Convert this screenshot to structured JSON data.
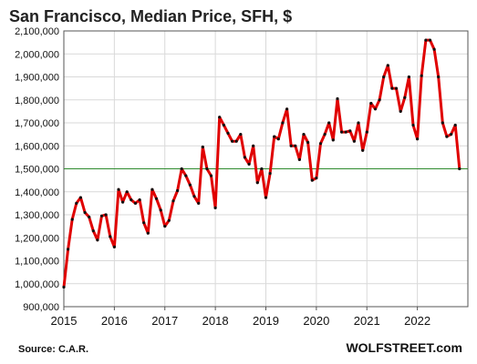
{
  "chart_data": {
    "type": "line",
    "title": "San Francisco, Median Price, SFH, $",
    "xlabel": "",
    "ylabel": "",
    "x_ticks": [
      "2015",
      "2016",
      "2017",
      "2018",
      "2019",
      "2020",
      "2021",
      "2022"
    ],
    "y_ticks": [
      "900,000",
      "1,000,000",
      "1,100,000",
      "1,200,000",
      "1,300,000",
      "1,400,000",
      "1,500,000",
      "1,600,000",
      "1,700,000",
      "1,800,000",
      "1,900,000",
      "2,000,000",
      "2,100,000"
    ],
    "xlim": [
      2015,
      2023
    ],
    "ylim": [
      900000,
      2100000
    ],
    "grid": true,
    "legend": false,
    "reference_line": {
      "value": 1500000,
      "color": "#2e8b2e"
    },
    "series": [
      {
        "color": "#e00000",
        "marker_color": "#111111",
        "points": [
          [
            2015.0,
            985000
          ],
          [
            2015.083,
            1150000
          ],
          [
            2015.167,
            1280000
          ],
          [
            2015.25,
            1350000
          ],
          [
            2015.333,
            1375000
          ],
          [
            2015.417,
            1310000
          ],
          [
            2015.5,
            1290000
          ],
          [
            2015.583,
            1230000
          ],
          [
            2015.667,
            1190000
          ],
          [
            2015.75,
            1295000
          ],
          [
            2015.833,
            1300000
          ],
          [
            2015.917,
            1205000
          ],
          [
            2016.0,
            1160000
          ],
          [
            2016.083,
            1410000
          ],
          [
            2016.167,
            1355000
          ],
          [
            2016.25,
            1400000
          ],
          [
            2016.333,
            1365000
          ],
          [
            2016.417,
            1350000
          ],
          [
            2016.5,
            1365000
          ],
          [
            2016.583,
            1265000
          ],
          [
            2016.667,
            1220000
          ],
          [
            2016.75,
            1410000
          ],
          [
            2016.833,
            1370000
          ],
          [
            2016.917,
            1320000
          ],
          [
            2017.0,
            1250000
          ],
          [
            2017.083,
            1275000
          ],
          [
            2017.167,
            1360000
          ],
          [
            2017.25,
            1405000
          ],
          [
            2017.333,
            1500000
          ],
          [
            2017.417,
            1470000
          ],
          [
            2017.5,
            1430000
          ],
          [
            2017.583,
            1380000
          ],
          [
            2017.667,
            1350000
          ],
          [
            2017.75,
            1595000
          ],
          [
            2017.833,
            1500000
          ],
          [
            2017.917,
            1470000
          ],
          [
            2018.0,
            1330000
          ],
          [
            2018.083,
            1725000
          ],
          [
            2018.167,
            1690000
          ],
          [
            2018.25,
            1655000
          ],
          [
            2018.333,
            1620000
          ],
          [
            2018.417,
            1620000
          ],
          [
            2018.5,
            1650000
          ],
          [
            2018.583,
            1550000
          ],
          [
            2018.667,
            1520000
          ],
          [
            2018.75,
            1600000
          ],
          [
            2018.833,
            1440000
          ],
          [
            2018.917,
            1500000
          ],
          [
            2019.0,
            1375000
          ],
          [
            2019.083,
            1480000
          ],
          [
            2019.167,
            1640000
          ],
          [
            2019.25,
            1630000
          ],
          [
            2019.333,
            1700000
          ],
          [
            2019.417,
            1760000
          ],
          [
            2019.5,
            1600000
          ],
          [
            2019.583,
            1600000
          ],
          [
            2019.667,
            1540000
          ],
          [
            2019.75,
            1650000
          ],
          [
            2019.833,
            1615000
          ],
          [
            2019.917,
            1450000
          ],
          [
            2020.0,
            1460000
          ],
          [
            2020.083,
            1610000
          ],
          [
            2020.167,
            1650000
          ],
          [
            2020.25,
            1700000
          ],
          [
            2020.333,
            1625000
          ],
          [
            2020.417,
            1805000
          ],
          [
            2020.5,
            1660000
          ],
          [
            2020.583,
            1660000
          ],
          [
            2020.667,
            1665000
          ],
          [
            2020.75,
            1620000
          ],
          [
            2020.833,
            1700000
          ],
          [
            2020.917,
            1580000
          ],
          [
            2021.0,
            1660000
          ],
          [
            2021.083,
            1785000
          ],
          [
            2021.167,
            1760000
          ],
          [
            2021.25,
            1800000
          ],
          [
            2021.333,
            1900000
          ],
          [
            2021.417,
            1950000
          ],
          [
            2021.5,
            1850000
          ],
          [
            2021.583,
            1850000
          ],
          [
            2021.667,
            1750000
          ],
          [
            2021.75,
            1810000
          ],
          [
            2021.833,
            1900000
          ],
          [
            2021.917,
            1690000
          ],
          [
            2022.0,
            1630000
          ],
          [
            2022.083,
            1905000
          ],
          [
            2022.167,
            2060000
          ],
          [
            2022.25,
            2060000
          ],
          [
            2022.333,
            2020000
          ],
          [
            2022.417,
            1900000
          ],
          [
            2022.5,
            1700000
          ],
          [
            2022.583,
            1640000
          ],
          [
            2022.667,
            1650000
          ],
          [
            2022.75,
            1690000
          ],
          [
            2022.833,
            1500000
          ]
        ]
      }
    ]
  },
  "footer": {
    "source": "Source: C.A.R.",
    "brand": "WOLFSTREET.com"
  }
}
